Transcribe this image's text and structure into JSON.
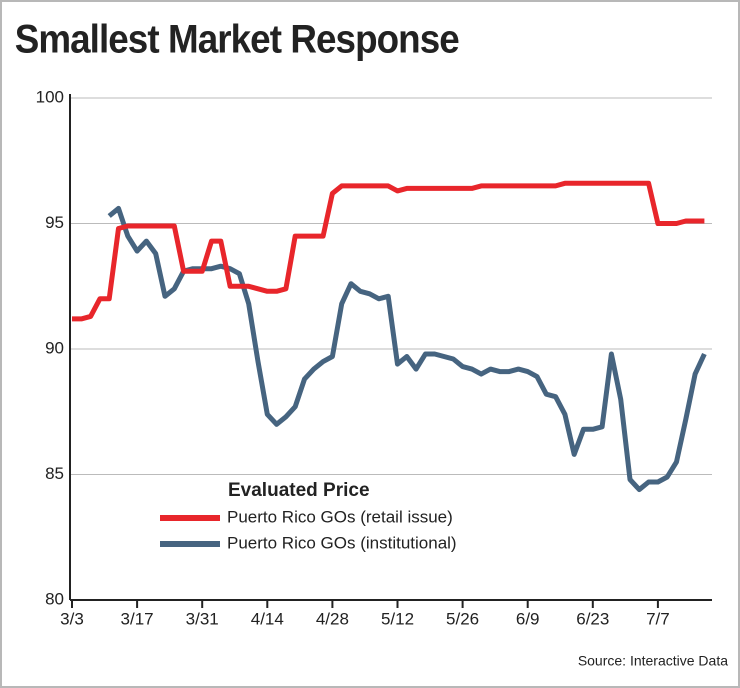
{
  "chart_data": {
    "type": "line",
    "title": "Smallest Market Response",
    "legend_title": "Evaluated Price",
    "source": "Source: Interactive Data",
    "categories": [
      "3/3",
      null,
      null,
      null,
      null,
      null,
      null,
      "3/17",
      null,
      null,
      null,
      null,
      null,
      null,
      "3/31",
      null,
      null,
      null,
      null,
      null,
      null,
      "4/14",
      null,
      null,
      null,
      null,
      null,
      null,
      "4/28",
      null,
      null,
      null,
      null,
      null,
      null,
      "5/12",
      null,
      null,
      null,
      null,
      null,
      null,
      "5/26",
      null,
      null,
      null,
      null,
      null,
      null,
      "6/9",
      null,
      null,
      null,
      null,
      null,
      null,
      "6/23",
      null,
      null,
      null,
      null,
      null,
      null,
      "7/7",
      null,
      null,
      null,
      null,
      null
    ],
    "series": [
      {
        "name": "Puerto Rico GOs (retail issue)",
        "color": "#e8262b",
        "values": [
          91.2,
          91.2,
          91.3,
          92.0,
          92.0,
          94.8,
          94.9,
          94.9,
          94.9,
          94.9,
          94.9,
          94.9,
          93.1,
          93.1,
          93.1,
          94.3,
          94.3,
          92.5,
          92.5,
          92.5,
          92.4,
          92.3,
          92.3,
          92.4,
          94.5,
          94.5,
          94.5,
          94.5,
          96.2,
          96.5,
          96.5,
          96.5,
          96.5,
          96.5,
          96.5,
          96.3,
          96.4,
          96.4,
          96.4,
          96.4,
          96.4,
          96.4,
          96.4,
          96.4,
          96.5,
          96.5,
          96.5,
          96.5,
          96.5,
          96.5,
          96.5,
          96.5,
          96.5,
          96.6,
          96.6,
          96.6,
          96.6,
          96.6,
          96.6,
          96.6,
          96.6,
          96.6,
          96.6,
          95.0,
          95.0,
          95.0,
          95.1,
          95.1,
          95.1
        ]
      },
      {
        "name": "Puerto Rico GOs (institutional)",
        "color": "#466480",
        "values": [
          null,
          null,
          null,
          null,
          95.3,
          95.6,
          94.5,
          93.9,
          94.3,
          93.8,
          92.1,
          92.4,
          93.1,
          93.2,
          93.2,
          93.2,
          93.3,
          93.2,
          93.0,
          91.8,
          89.5,
          87.4,
          87.0,
          87.3,
          87.7,
          88.8,
          89.2,
          89.5,
          89.7,
          91.8,
          92.6,
          92.3,
          92.2,
          92.0,
          92.1,
          89.4,
          89.7,
          89.2,
          89.8,
          89.8,
          89.7,
          89.6,
          89.3,
          89.2,
          89.0,
          89.2,
          89.1,
          89.1,
          89.2,
          89.1,
          88.9,
          88.2,
          88.1,
          87.4,
          85.8,
          86.8,
          86.8,
          86.9,
          89.8,
          88.0,
          84.8,
          84.4,
          84.7,
          84.7,
          84.9,
          85.5,
          87.2,
          89.0,
          89.8
        ]
      }
    ],
    "ylim": [
      80,
      100
    ],
    "yticks": [
      80,
      85,
      90,
      95,
      100
    ],
    "grid": true
  }
}
